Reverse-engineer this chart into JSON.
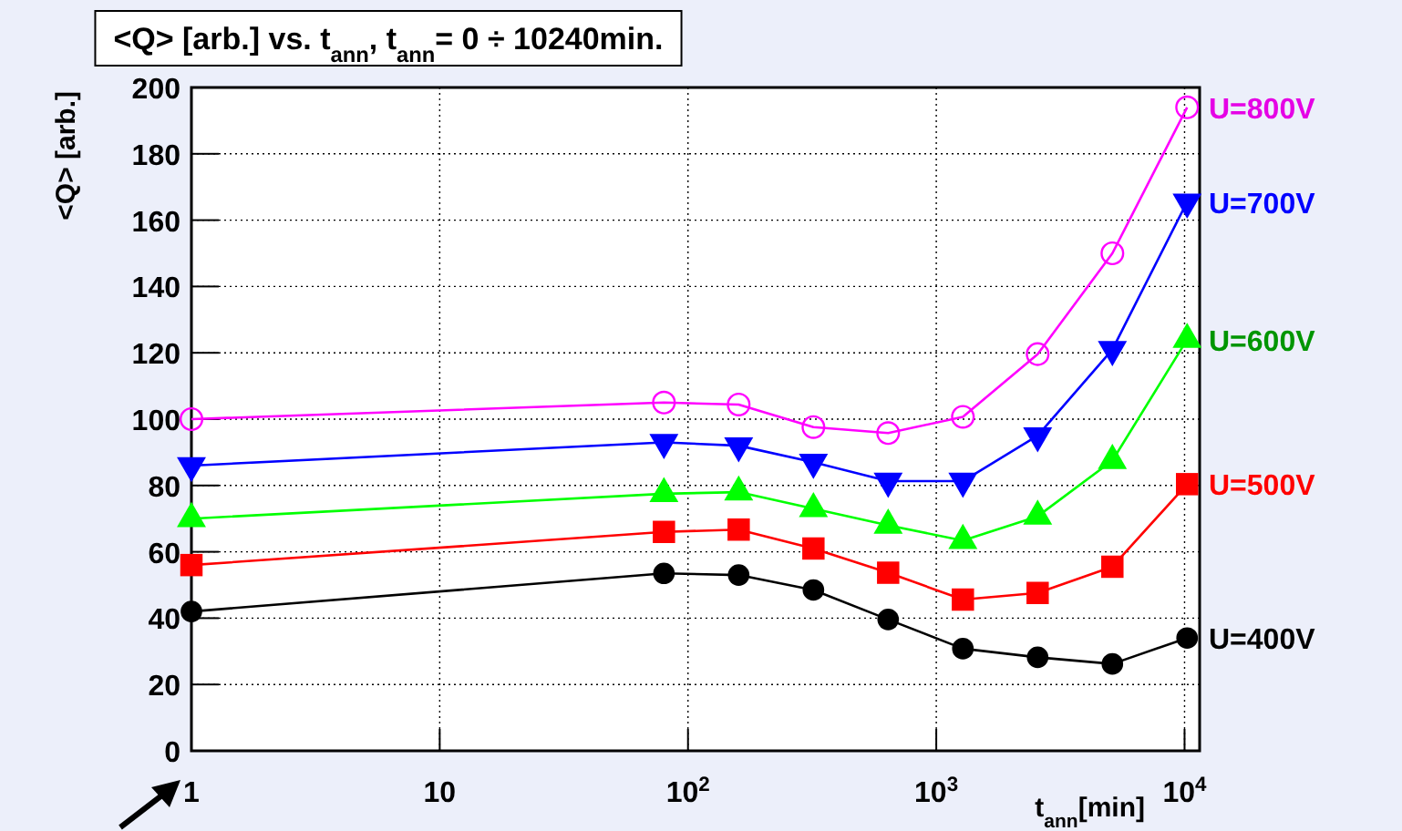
{
  "chart_data": {
    "type": "line",
    "title": "<Q> [arb.] vs. t$_{ann}$, t$_{ann}$= 0 ÷ 10240min.",
    "xlabel": "t$_{ann}$[min]",
    "ylabel": "<Q> [arb.]",
    "log": "x",
    "grid": true,
    "legend": false,
    "x": [
      1,
      80,
      160,
      320,
      640,
      1280,
      2560,
      5120,
      10240
    ],
    "xlim": [
      1,
      11500
    ],
    "xticks": [
      {
        "value": 1,
        "label": "1"
      },
      {
        "value": 10,
        "label": "10"
      },
      {
        "value": 100,
        "label": "10$^{2}$"
      },
      {
        "value": 1000,
        "label": "10$^{3}$"
      },
      {
        "value": 10000,
        "label": "10$^{4}$"
      }
    ],
    "ylim": [
      0,
      200
    ],
    "yticks": [
      0,
      20,
      40,
      60,
      80,
      100,
      120,
      140,
      160,
      180,
      200
    ],
    "series": [
      {
        "name": "U=800V",
        "color": "#ff00ff",
        "marker": "circle-open",
        "values": [
          100,
          105,
          104.4,
          97.6,
          95.8,
          100.7,
          119.6,
          150,
          194
        ]
      },
      {
        "name": "U=700V",
        "color": "#0000ff",
        "marker": "triangle-down",
        "values": [
          86,
          93,
          92,
          87,
          81.3,
          81.3,
          95,
          121,
          165.5
        ]
      },
      {
        "name": "U=600V",
        "color": "#00ff00",
        "marker": "triangle",
        "values": [
          70,
          77.5,
          78,
          73,
          68,
          63.4,
          70.7,
          87.5,
          124
        ]
      },
      {
        "name": "U=500V",
        "color": "#ff0000",
        "marker": "square",
        "values": [
          56,
          66,
          66.7,
          61,
          53.7,
          45.6,
          47.6,
          55.5,
          80.4
        ]
      },
      {
        "name": "U=400V",
        "color": "#000000",
        "marker": "circle",
        "values": [
          42,
          53.5,
          53,
          48.5,
          39.6,
          30.8,
          28.2,
          26.2,
          34
        ]
      }
    ]
  }
}
